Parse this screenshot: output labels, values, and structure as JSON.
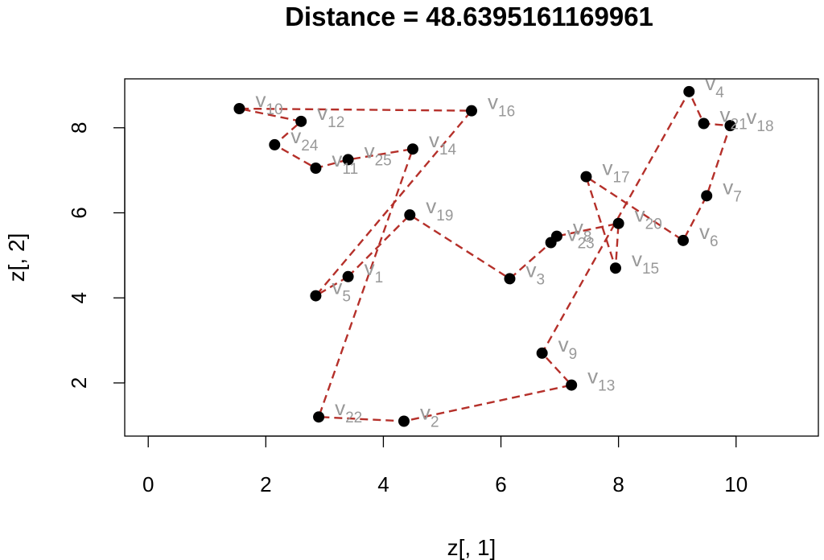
{
  "chart_data": {
    "type": "scatter",
    "title": "Distance = 48.6395161169961",
    "xlabel": "z[, 1]",
    "ylabel": "z[, 2]",
    "xlim": [
      -0.4,
      11.4
    ],
    "ylim": [
      0.75,
      9.15
    ],
    "xticks": [
      0,
      2,
      4,
      6,
      8,
      10
    ],
    "yticks": [
      2,
      4,
      6,
      8
    ],
    "grid": false,
    "legend": "none",
    "colors": {
      "point": "#000000",
      "path": "#b5302a",
      "label": "#999999"
    },
    "label_prefix": "v",
    "points": [
      {
        "id": "1",
        "x": 3.4,
        "y": 4.5
      },
      {
        "id": "2",
        "x": 4.35,
        "y": 1.1
      },
      {
        "id": "3",
        "x": 6.15,
        "y": 4.45
      },
      {
        "id": "4",
        "x": 9.2,
        "y": 8.85
      },
      {
        "id": "5",
        "x": 2.85,
        "y": 4.05
      },
      {
        "id": "6",
        "x": 9.1,
        "y": 5.35
      },
      {
        "id": "7",
        "x": 9.5,
        "y": 6.4
      },
      {
        "id": "8",
        "x": 6.95,
        "y": 5.45
      },
      {
        "id": "9",
        "x": 6.7,
        "y": 2.7
      },
      {
        "id": "10",
        "x": 1.55,
        "y": 8.45
      },
      {
        "id": "11",
        "x": 2.85,
        "y": 7.05
      },
      {
        "id": "12",
        "x": 2.6,
        "y": 8.15
      },
      {
        "id": "13",
        "x": 7.2,
        "y": 1.95
      },
      {
        "id": "14",
        "x": 4.5,
        "y": 7.5
      },
      {
        "id": "15",
        "x": 7.95,
        "y": 4.7
      },
      {
        "id": "16",
        "x": 5.5,
        "y": 8.4
      },
      {
        "id": "17",
        "x": 7.45,
        "y": 6.85
      },
      {
        "id": "18",
        "x": 9.9,
        "y": 8.05
      },
      {
        "id": "19",
        "x": 4.45,
        "y": 5.95
      },
      {
        "id": "20",
        "x": 8.0,
        "y": 5.75
      },
      {
        "id": "21",
        "x": 9.45,
        "y": 8.1
      },
      {
        "id": "22",
        "x": 2.9,
        "y": 1.2
      },
      {
        "id": "23",
        "x": 6.85,
        "y": 5.3
      },
      {
        "id": "24",
        "x": 2.15,
        "y": 7.6
      },
      {
        "id": "25",
        "x": 3.4,
        "y": 7.25
      }
    ],
    "path_order": [
      "1",
      "19",
      "3",
      "23",
      "8",
      "20",
      "15",
      "17",
      "6",
      "7",
      "18",
      "21",
      "4",
      "9",
      "13",
      "2",
      "22",
      "14",
      "25",
      "11",
      "24",
      "12",
      "10",
      "16",
      "5",
      "1"
    ]
  }
}
